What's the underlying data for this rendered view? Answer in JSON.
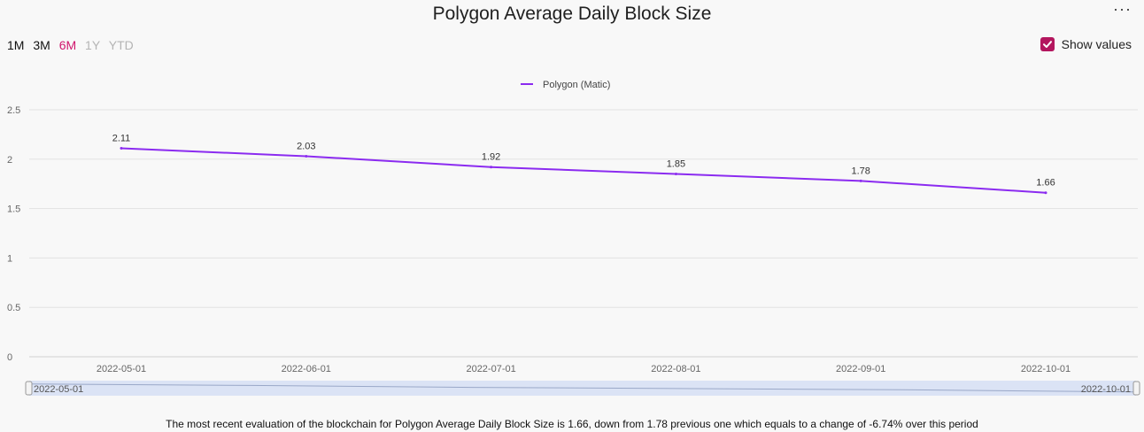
{
  "header": {
    "title": "Polygon Average Daily Block Size",
    "menu_label": "···"
  },
  "ranges": [
    {
      "label": "1M",
      "state": "enabled"
    },
    {
      "label": "3M",
      "state": "enabled"
    },
    {
      "label": "6M",
      "state": "active"
    },
    {
      "label": "1Y",
      "state": "disabled"
    },
    {
      "label": "YTD",
      "state": "disabled"
    }
  ],
  "controls": {
    "show_values_label": "Show values",
    "show_values_checked": true
  },
  "summary": "The most recent evaluation of the blockchain for Polygon Average Daily Block Size is 1.66, down from 1.78 previous one which equals to a change of -6.74% over this period",
  "navigator": {
    "start_label": "2022-05-01",
    "end_label": "2022-10-01"
  },
  "colors": {
    "line": "#8b2bf0",
    "accent": "#d0156c",
    "grid": "#e2e2e2",
    "navigator": "#dbe3f5"
  },
  "chart_data": {
    "type": "line",
    "title": "Polygon Average Daily Block Size",
    "x": [
      "2022-05-01",
      "2022-06-01",
      "2022-07-01",
      "2022-08-01",
      "2022-09-01",
      "2022-10-01"
    ],
    "series": [
      {
        "name": "Polygon (Matic)",
        "values": [
          2.11,
          2.03,
          1.92,
          1.85,
          1.78,
          1.66
        ]
      }
    ],
    "data_labels": [
      "2.11",
      "2.03",
      "1.92",
      "1.85",
      "1.78",
      "1.66"
    ],
    "ylim": [
      0,
      2.5
    ],
    "yticks": [
      "0",
      "0.5",
      "1",
      "1.5",
      "2",
      "2.5"
    ],
    "grid": true,
    "legend": "top-center",
    "xlabel": "",
    "ylabel": ""
  }
}
